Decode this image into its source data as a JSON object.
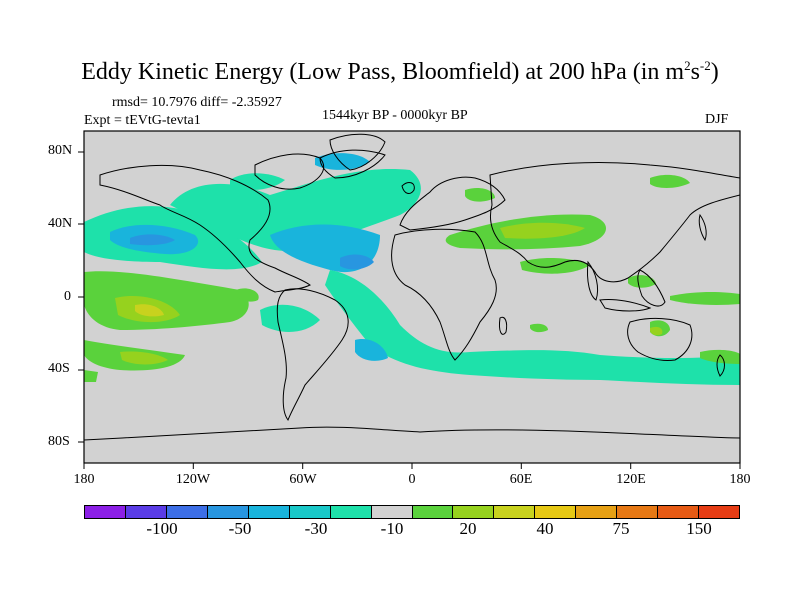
{
  "title": "Eddy Kinetic Energy (Low Pass, Bloomfield) at 200 hPa (in m",
  "title_units": {
    "sup1": "2",
    "mid": "s",
    "sup2": "-2",
    "close": ")"
  },
  "stats": "rmsd= 10.7976  diff= -2.35927",
  "experiment": "Expt = tEVtG-tevta1",
  "period": "1544kyr BP - 0000kyr BP",
  "season": "DJF",
  "lat_ticks": [
    "80N",
    "40N",
    "0",
    "40S",
    "80S"
  ],
  "lon_ticks": [
    "180",
    "120W",
    "60W",
    "0",
    "60E",
    "120E",
    "180"
  ],
  "colorbar": {
    "labels": [
      "-100",
      "-50",
      "-30",
      "-10",
      "20",
      "40",
      "75",
      "150"
    ],
    "colors": [
      "#8c1fe6",
      "#5a3ce6",
      "#3c6ee6",
      "#2896e0",
      "#19b4dc",
      "#19c8c8",
      "#1ee1aa",
      "#d2d2d2",
      "#5ad23c",
      "#96d21e",
      "#c8d21e",
      "#e6c814",
      "#e6a014",
      "#e67814",
      "#e65a14",
      "#e63c14"
    ]
  },
  "ocean_color": "#d2d2d2"
}
